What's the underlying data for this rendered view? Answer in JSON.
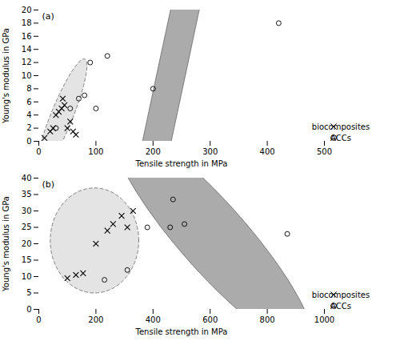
{
  "chart_data": [
    {
      "type": "scatter",
      "xlabel": "Tensile strength in MPa",
      "ylabel": "Young's modulus in GPa",
      "annotations": [
        "(a)"
      ],
      "xlim": [
        0,
        500
      ],
      "ylim": [
        0,
        20
      ],
      "xticks": [
        0,
        100,
        200,
        300,
        400,
        500
      ],
      "yticks": [
        0,
        2,
        4,
        6,
        8,
        10,
        12,
        14,
        16,
        18,
        20
      ],
      "legend": "lower right",
      "series": [
        {
          "name": "biocomposites",
          "marker": "x",
          "color": "black",
          "line_style": "dashed",
          "x": [
            10,
            20,
            25,
            30,
            35,
            40,
            42,
            45,
            50,
            55,
            60,
            65
          ],
          "y": [
            0.5,
            1.5,
            2.0,
            4.0,
            4.5,
            5.0,
            6.5,
            5.5,
            2.0,
            3.0,
            1.5,
            1.0
          ],
          "ellipse": {
            "cx": 40,
            "cy": 3.8,
            "width": 90,
            "height": 8.0,
            "angle": 10,
            "color": "#d8d8d8"
          }
        },
        {
          "name": "ACCs",
          "marker": "circle",
          "color": "black",
          "line_style": "solid",
          "x": [
            30,
            55,
            70,
            80,
            90,
            100,
            120,
            200,
            420
          ],
          "y": [
            2.0,
            5.0,
            6.5,
            7.0,
            12.0,
            5.0,
            13.0,
            8.0,
            18.0
          ],
          "ellipse": {
            "cx": 230,
            "cy": 9.5,
            "width": 500,
            "height": 19,
            "angle": 22,
            "color": "#888888"
          }
        }
      ]
    },
    {
      "type": "scatter",
      "xlabel": "Tensile strength in MPa",
      "ylabel": "Young's modulus in GPa",
      "annotations": [
        "(b)"
      ],
      "xlim": [
        0,
        1000
      ],
      "ylim": [
        0,
        40
      ],
      "xticks": [
        0,
        200,
        400,
        600,
        800,
        1000
      ],
      "yticks": [
        0,
        5,
        10,
        15,
        20,
        25,
        30,
        35,
        40
      ],
      "legend": "lower right",
      "series": [
        {
          "name": "biocomposites",
          "marker": "x",
          "color": "black",
          "line_style": "dashed",
          "x": [
            100,
            130,
            155,
            200,
            240,
            260,
            290,
            310,
            330
          ],
          "y": [
            9.5,
            10.5,
            11.0,
            20.0,
            24.0,
            26.0,
            28.5,
            25.0,
            30.0
          ],
          "ellipse": {
            "cx": 195,
            "cy": 21,
            "width": 310,
            "height": 32,
            "angle": 0,
            "color": "#d8d8d8"
          }
        },
        {
          "name": "ACCs",
          "marker": "circle",
          "color": "black",
          "line_style": "solid",
          "x": [
            230,
            310,
            380,
            460,
            470,
            510,
            870
          ],
          "y": [
            9.0,
            12.0,
            25.0,
            25.0,
            33.5,
            26.0,
            23.0
          ],
          "ellipse": {
            "cx": 610,
            "cy": 22,
            "width": 700,
            "height": 30,
            "angle": -5,
            "color": "#888888"
          }
        }
      ]
    }
  ]
}
